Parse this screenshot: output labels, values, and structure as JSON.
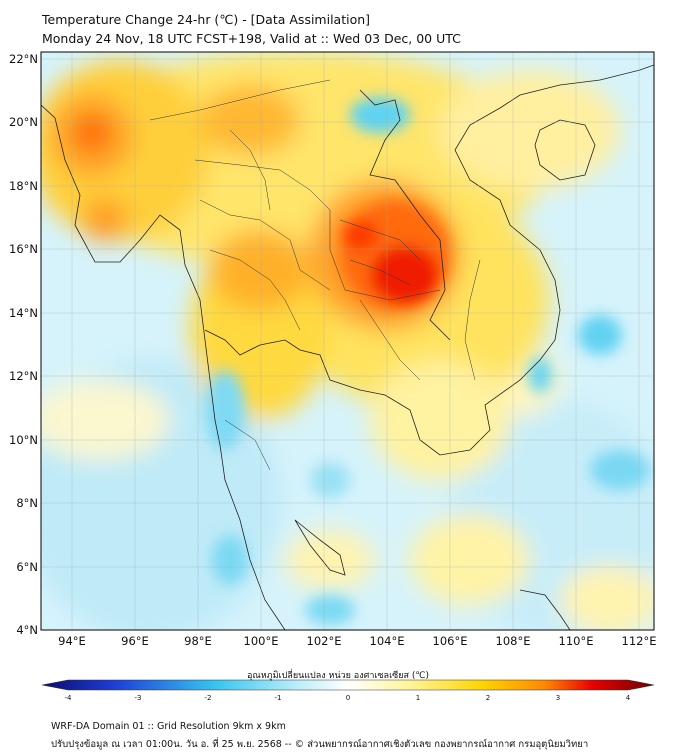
{
  "title_line1": "Temperature Change 24-hr (℃) - [Data Assimilation]",
  "title_line2": "Monday 24 Nov, 18 UTC FCST+198, Valid at :: Wed 03 Dec, 00 UTC",
  "map": {
    "lon_range": [
      93,
      112.5
    ],
    "lat_range": [
      4,
      22.2
    ],
    "lon_ticks": [
      "94°E",
      "96°E",
      "98°E",
      "100°E",
      "102°E",
      "104°E",
      "106°E",
      "108°E",
      "110°E",
      "112°E"
    ],
    "lat_ticks": [
      "22°N",
      "20°N",
      "18°N",
      "16°N",
      "14°N",
      "12°N",
      "10°N",
      "8°N",
      "6°N",
      "4°N"
    ],
    "grid": true
  },
  "colorbar": {
    "label": "อุณหภูมิเปลี่ยนแปลง หน่วย องศาเซลเซียส (℃)",
    "range": [
      -4,
      4
    ],
    "ticks": [
      "-4",
      "-3",
      "-2",
      "-1",
      "0",
      "1",
      "2",
      "3",
      "4"
    ],
    "colors": {
      "cold_extreme": "#0a0a6e",
      "cold": "#1f3fd8",
      "cool": "#36c3ee",
      "neutral": "#ffffff",
      "warm": "#ffe44d",
      "hot": "#ff8a00",
      "very_hot": "#e80000",
      "hot_extreme": "#6e0000"
    }
  },
  "footer_line1": "WRF-DA Domain 01 :: Grid Resolution 9km x 9km",
  "footer_line2": "ปรับปรุงข้อมูล ณ เวลา 01:00น. วัน อ. ที่ 25 พ.ย. 2568 -- © ส่วนพยากรณ์อากาศเชิงตัวเลข กองพยากรณ์อากาศ กรมอุตุนิยมวิทยา"
}
